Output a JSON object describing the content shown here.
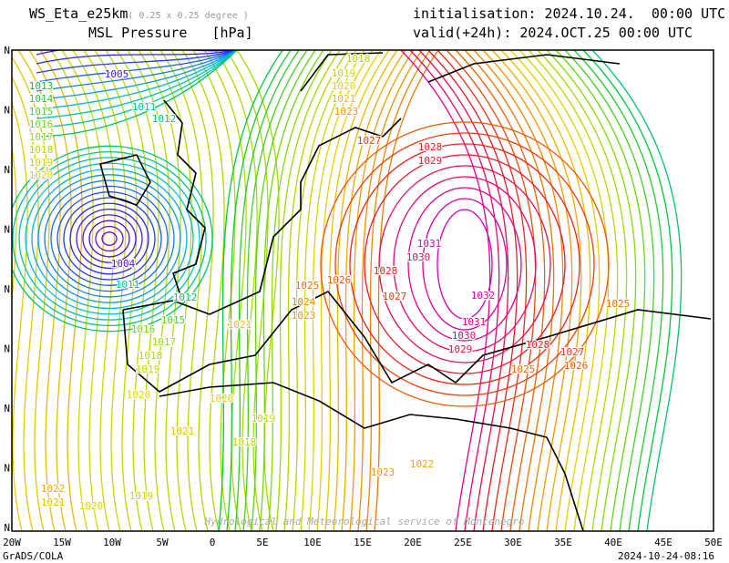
{
  "header": {
    "model": "WS_Eta_e25km",
    "resolution": "( 0.25 x 0.25 degree )",
    "field": "MSL Pressure",
    "units": "[hPa]",
    "init": "initialisation: 2024.10.24.  00:00 UTC",
    "valid": "valid(+24h): 2024.OCT.25 00:00 UTC"
  },
  "axis": {
    "lon_labels": [
      "20W",
      "15W",
      "10W",
      "5W",
      "0",
      "5E",
      "10E",
      "15E",
      "20E",
      "25E",
      "30E",
      "35E",
      "40E",
      "45E",
      "50E"
    ],
    "lat_labels": [
      "N",
      "N",
      "N",
      "N",
      "N",
      "N",
      "N",
      "N",
      "N"
    ]
  },
  "isobar_labels": [
    "1005",
    "1011",
    "1012",
    "1013",
    "1014",
    "1015",
    "1016",
    "1017",
    "1018",
    "1019",
    "1020",
    "1004",
    "1011",
    "1012",
    "1015",
    "1016",
    "1017",
    "1018",
    "1019",
    "1020",
    "1021",
    "1020",
    "1019",
    "1018",
    "1019",
    "1020",
    "1021",
    "1022",
    "1021",
    "1025",
    "1026",
    "1024",
    "1023",
    "1028",
    "1027",
    "1031",
    "1030",
    "1032",
    "1031",
    "1030",
    "1029",
    "1028",
    "1027",
    "1026",
    "1025",
    "1025",
    "1023",
    "1022",
    "1028",
    "1029",
    "1027",
    "1023",
    "1018",
    "1019",
    "1020",
    "1021"
  ],
  "watermark": "Hydrological and Meteorological service of Montenegro",
  "footer": {
    "left": "GrADS/COLA",
    "right": "2024-10-24-08:16"
  }
}
